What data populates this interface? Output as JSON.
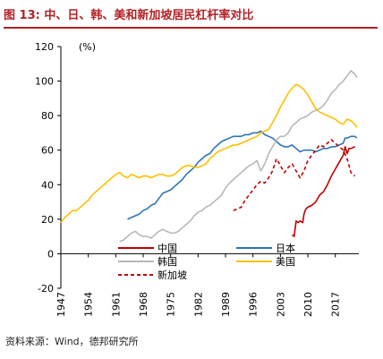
{
  "header": {
    "figure_label": "图 13:",
    "title": "中、日、韩、美和新加坡居民杠杆率对比"
  },
  "footer": {
    "source": "资料来源：Wind，德邦研究所"
  },
  "chart_data": {
    "type": "line",
    "unit_label": "(%)",
    "ylim": [
      -20,
      120
    ],
    "yticks": [
      -20,
      0,
      20,
      40,
      60,
      80,
      100,
      120
    ],
    "xlim": [
      1947,
      2023
    ],
    "xticks": [
      1947,
      1954,
      1961,
      1968,
      1975,
      1982,
      1989,
      1996,
      2003,
      2010,
      2017
    ],
    "legend_position": "inside-bottom",
    "grid": false,
    "series": [
      {
        "name": "中国",
        "color": "#c00000",
        "dash": "solid",
        "points": [
          [
            2006,
            11
          ],
          [
            2006.5,
            10
          ],
          [
            2007,
            19
          ],
          [
            2007.5,
            18
          ],
          [
            2008,
            19
          ],
          [
            2008.7,
            18
          ],
          [
            2009,
            23
          ],
          [
            2009.5,
            26
          ],
          [
            2010,
            27
          ],
          [
            2011,
            28
          ],
          [
            2012,
            30
          ],
          [
            2013,
            34
          ],
          [
            2014,
            36
          ],
          [
            2015,
            40
          ],
          [
            2016,
            45
          ],
          [
            2017,
            49
          ],
          [
            2018,
            53
          ],
          [
            2019,
            57
          ],
          [
            2019.5,
            62
          ],
          [
            2020,
            58
          ],
          [
            2020.5,
            61
          ],
          [
            2021,
            61
          ],
          [
            2022,
            62
          ]
        ]
      },
      {
        "name": "日本",
        "color": "#2e75b6",
        "dash": "solid",
        "points": [
          [
            1964,
            20
          ],
          [
            1965,
            21
          ],
          [
            1966,
            22
          ],
          [
            1967,
            23
          ],
          [
            1968,
            25
          ],
          [
            1969,
            26
          ],
          [
            1970,
            28
          ],
          [
            1971,
            29
          ],
          [
            1972,
            32
          ],
          [
            1973,
            35
          ],
          [
            1974,
            36
          ],
          [
            1975,
            37
          ],
          [
            1976,
            39
          ],
          [
            1977,
            41
          ],
          [
            1978,
            43
          ],
          [
            1979,
            46
          ],
          [
            1980,
            48
          ],
          [
            1981,
            50
          ],
          [
            1982,
            53
          ],
          [
            1983,
            55
          ],
          [
            1984,
            57
          ],
          [
            1985,
            58
          ],
          [
            1986,
            61
          ],
          [
            1987,
            63
          ],
          [
            1988,
            65
          ],
          [
            1989,
            66
          ],
          [
            1990,
            67
          ],
          [
            1991,
            68
          ],
          [
            1992,
            68
          ],
          [
            1993,
            68
          ],
          [
            1994,
            69
          ],
          [
            1995,
            69
          ],
          [
            1996,
            70
          ],
          [
            1997,
            70
          ],
          [
            1998,
            71
          ],
          [
            1999,
            69
          ],
          [
            2000,
            68
          ],
          [
            2001,
            67
          ],
          [
            2002,
            65
          ],
          [
            2003,
            63
          ],
          [
            2004,
            62
          ],
          [
            2005,
            62
          ],
          [
            2006,
            63
          ],
          [
            2007,
            61
          ],
          [
            2008,
            59
          ],
          [
            2009,
            60
          ],
          [
            2010,
            60
          ],
          [
            2011,
            60
          ],
          [
            2012,
            59
          ],
          [
            2013,
            60
          ],
          [
            2014,
            61
          ],
          [
            2015,
            61
          ],
          [
            2016,
            62
          ],
          [
            2017,
            62
          ],
          [
            2018,
            63
          ],
          [
            2019,
            64
          ],
          [
            2019.5,
            67
          ],
          [
            2020,
            67
          ],
          [
            2021,
            68
          ],
          [
            2022,
            68
          ],
          [
            2022.5,
            67
          ]
        ]
      },
      {
        "name": "韩国",
        "color": "#b8b8b8",
        "dash": "solid",
        "points": [
          [
            1962,
            7
          ],
          [
            1963,
            8
          ],
          [
            1964,
            10
          ],
          [
            1965,
            12
          ],
          [
            1966,
            13
          ],
          [
            1967,
            11
          ],
          [
            1968,
            10
          ],
          [
            1969,
            10
          ],
          [
            1970,
            9
          ],
          [
            1971,
            11
          ],
          [
            1972,
            13
          ],
          [
            1973,
            14
          ],
          [
            1974,
            13
          ],
          [
            1975,
            12
          ],
          [
            1976,
            12
          ],
          [
            1977,
            13
          ],
          [
            1978,
            15
          ],
          [
            1979,
            17
          ],
          [
            1980,
            19
          ],
          [
            1981,
            22
          ],
          [
            1982,
            24
          ],
          [
            1983,
            25
          ],
          [
            1984,
            27
          ],
          [
            1985,
            28
          ],
          [
            1986,
            30
          ],
          [
            1987,
            32
          ],
          [
            1988,
            34
          ],
          [
            1989,
            38
          ],
          [
            1990,
            41
          ],
          [
            1991,
            43
          ],
          [
            1992,
            45
          ],
          [
            1993,
            47
          ],
          [
            1994,
            49
          ],
          [
            1995,
            51
          ],
          [
            1996,
            52
          ],
          [
            1997,
            54
          ],
          [
            1998,
            48
          ],
          [
            1999,
            52
          ],
          [
            2000,
            58
          ],
          [
            2001,
            62
          ],
          [
            2002,
            66
          ],
          [
            2003,
            68
          ],
          [
            2004,
            68
          ],
          [
            2005,
            70
          ],
          [
            2006,
            74
          ],
          [
            2007,
            76
          ],
          [
            2008,
            78
          ],
          [
            2009,
            79
          ],
          [
            2010,
            80
          ],
          [
            2011,
            82
          ],
          [
            2012,
            83
          ],
          [
            2013,
            84
          ],
          [
            2014,
            86
          ],
          [
            2015,
            89
          ],
          [
            2016,
            93
          ],
          [
            2017,
            95
          ],
          [
            2018,
            98
          ],
          [
            2019,
            100
          ],
          [
            2020,
            103
          ],
          [
            2021,
            106
          ],
          [
            2022,
            104
          ],
          [
            2022.5,
            102
          ]
        ]
      },
      {
        "name": "美国",
        "color": "#ffc000",
        "dash": "solid",
        "points": [
          [
            1947,
            18
          ],
          [
            1948,
            21
          ],
          [
            1949,
            23
          ],
          [
            1950,
            25
          ],
          [
            1951,
            25
          ],
          [
            1952,
            27
          ],
          [
            1953,
            29
          ],
          [
            1954,
            31
          ],
          [
            1955,
            34
          ],
          [
            1956,
            36
          ],
          [
            1957,
            38
          ],
          [
            1958,
            40
          ],
          [
            1959,
            42
          ],
          [
            1960,
            44
          ],
          [
            1961,
            46
          ],
          [
            1962,
            47
          ],
          [
            1963,
            45
          ],
          [
            1964,
            44
          ],
          [
            1965,
            46
          ],
          [
            1966,
            45
          ],
          [
            1967,
            44
          ],
          [
            1968,
            45
          ],
          [
            1969,
            45
          ],
          [
            1970,
            44
          ],
          [
            1971,
            45
          ],
          [
            1972,
            46
          ],
          [
            1973,
            46
          ],
          [
            1974,
            45
          ],
          [
            1975,
            45
          ],
          [
            1976,
            46
          ],
          [
            1977,
            48
          ],
          [
            1978,
            50
          ],
          [
            1979,
            51
          ],
          [
            1980,
            51
          ],
          [
            1981,
            50
          ],
          [
            1982,
            50
          ],
          [
            1983,
            51
          ],
          [
            1984,
            52
          ],
          [
            1985,
            55
          ],
          [
            1986,
            57
          ],
          [
            1987,
            59
          ],
          [
            1988,
            60
          ],
          [
            1989,
            61
          ],
          [
            1990,
            62
          ],
          [
            1991,
            63
          ],
          [
            1992,
            63
          ],
          [
            1993,
            64
          ],
          [
            1994,
            65
          ],
          [
            1995,
            66
          ],
          [
            1996,
            67
          ],
          [
            1997,
            68
          ],
          [
            1998,
            70
          ],
          [
            1999,
            71
          ],
          [
            2000,
            72
          ],
          [
            2001,
            76
          ],
          [
            2002,
            80
          ],
          [
            2003,
            85
          ],
          [
            2004,
            89
          ],
          [
            2005,
            93
          ],
          [
            2006,
            96
          ],
          [
            2007,
            98
          ],
          [
            2008,
            97
          ],
          [
            2009,
            95
          ],
          [
            2010,
            92
          ],
          [
            2011,
            88
          ],
          [
            2012,
            84
          ],
          [
            2013,
            82
          ],
          [
            2014,
            81
          ],
          [
            2015,
            80
          ],
          [
            2016,
            79
          ],
          [
            2017,
            78
          ],
          [
            2018,
            76
          ],
          [
            2019,
            75
          ],
          [
            2020,
            78
          ],
          [
            2021,
            77
          ],
          [
            2022,
            75
          ],
          [
            2022.5,
            73
          ]
        ]
      },
      {
        "name": "新加坡",
        "color": "#c00000",
        "dash": "dashed",
        "points": [
          [
            1991,
            25
          ],
          [
            1992,
            26
          ],
          [
            1993,
            27
          ],
          [
            1994,
            31
          ],
          [
            1995,
            34
          ],
          [
            1996,
            37
          ],
          [
            1997,
            40
          ],
          [
            1998,
            42
          ],
          [
            1999,
            41
          ],
          [
            2000,
            44
          ],
          [
            2001,
            48
          ],
          [
            2002,
            55
          ],
          [
            2003,
            51
          ],
          [
            2004,
            47
          ],
          [
            2005,
            50
          ],
          [
            2006,
            52
          ],
          [
            2007,
            48
          ],
          [
            2008,
            44
          ],
          [
            2009,
            48
          ],
          [
            2010,
            54
          ],
          [
            2011,
            57
          ],
          [
            2012,
            60
          ],
          [
            2013,
            63
          ],
          [
            2014,
            62
          ],
          [
            2015,
            64
          ],
          [
            2016,
            66
          ],
          [
            2017,
            64
          ],
          [
            2018,
            62
          ],
          [
            2019,
            60
          ],
          [
            2020,
            55
          ],
          [
            2021,
            47
          ],
          [
            2022,
            45
          ]
        ]
      }
    ]
  }
}
